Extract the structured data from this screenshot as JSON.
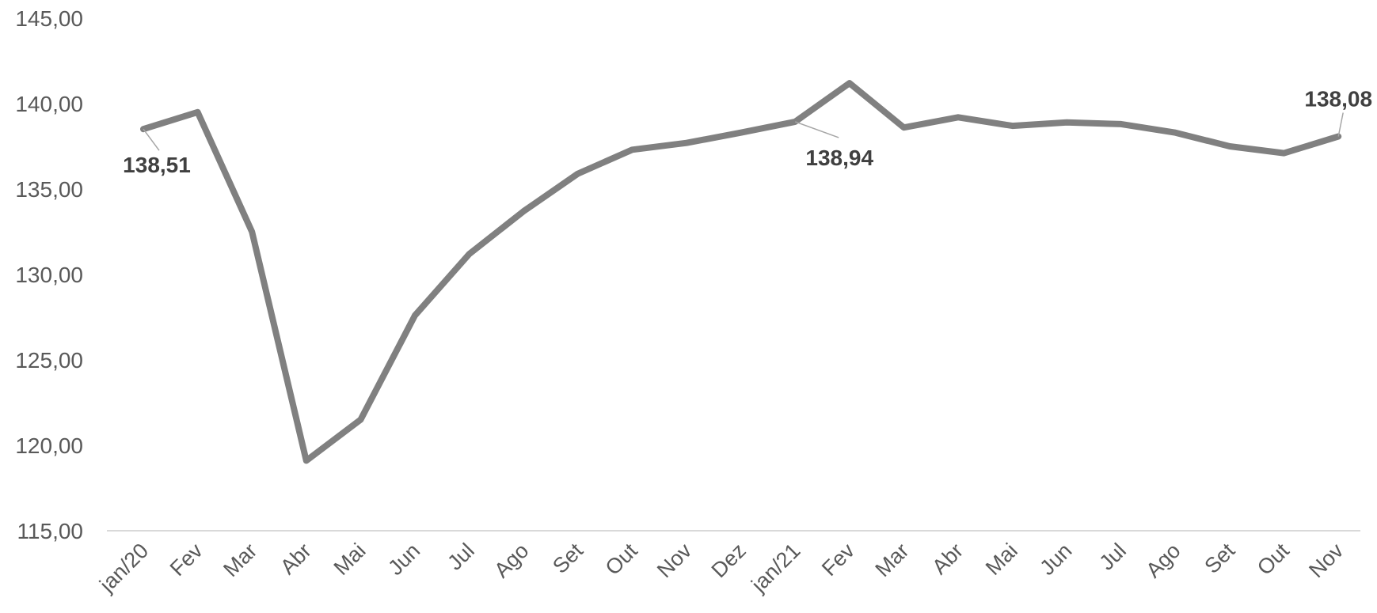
{
  "chart_data": {
    "type": "line",
    "title": "",
    "xlabel": "",
    "ylabel": "",
    "ylim": [
      115,
      145
    ],
    "yticks": [
      "115,00",
      "120,00",
      "125,00",
      "130,00",
      "135,00",
      "140,00",
      "145,00"
    ],
    "categories": [
      "jan/20",
      "Fev",
      "Mar",
      "Abr",
      "Mai",
      "Jun",
      "Jul",
      "Ago",
      "Set",
      "Out",
      "Nov",
      "Dez",
      "jan/21",
      "Fev",
      "Mar",
      "Abr",
      "Mai",
      "Jun",
      "Jul",
      "Ago",
      "Set",
      "Out",
      "Nov"
    ],
    "series": [
      {
        "values": [
          138.51,
          139.5,
          132.5,
          119.1,
          121.5,
          127.6,
          131.2,
          133.7,
          135.9,
          137.3,
          137.7,
          138.3,
          138.94,
          141.2,
          138.6,
          139.2,
          138.7,
          138.9,
          138.8,
          138.3,
          137.5,
          137.1,
          138.08
        ],
        "color": "#808080"
      }
    ],
    "data_labels": [
      {
        "index": 0,
        "text": "138,51"
      },
      {
        "index": 12,
        "text": "138,94"
      },
      {
        "index": 22,
        "text": "138,08"
      }
    ],
    "grid": false,
    "legend": "none"
  }
}
